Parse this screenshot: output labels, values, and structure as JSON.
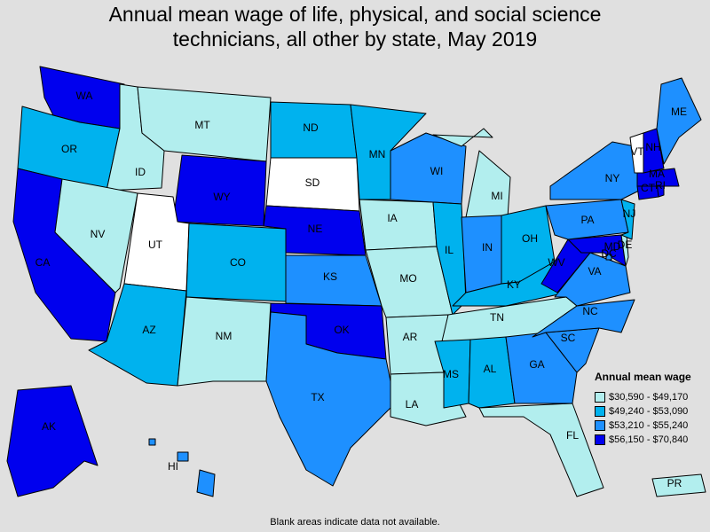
{
  "title_line1": "Annual mean wage of life, physical, and social science",
  "title_line2": "technicians, all other by state, May 2019",
  "legend": {
    "title": "Annual mean wage",
    "bins": [
      {
        "label": "$30,590 - $49,170",
        "color": "#b2eeee"
      },
      {
        "label": "$49,240 - $53,090",
        "color": "#00b2ee"
      },
      {
        "label": "$53,210 - $55,240",
        "color": "#1e90ff"
      },
      {
        "label": "$56,150 - $70,840",
        "color": "#0000ee"
      }
    ]
  },
  "no_data_color": "#ffffff",
  "note": "Blank areas indicate data not available.",
  "states": [
    {
      "abbr": "WA",
      "bin": 3
    },
    {
      "abbr": "OR",
      "bin": 1
    },
    {
      "abbr": "CA",
      "bin": 3
    },
    {
      "abbr": "ID",
      "bin": 0
    },
    {
      "abbr": "NV",
      "bin": 0
    },
    {
      "abbr": "MT",
      "bin": 0
    },
    {
      "abbr": "WY",
      "bin": 3
    },
    {
      "abbr": "UT",
      "bin": null
    },
    {
      "abbr": "AZ",
      "bin": 1
    },
    {
      "abbr": "CO",
      "bin": 1
    },
    {
      "abbr": "NM",
      "bin": 0
    },
    {
      "abbr": "ND",
      "bin": 1
    },
    {
      "abbr": "SD",
      "bin": null
    },
    {
      "abbr": "NE",
      "bin": 3
    },
    {
      "abbr": "KS",
      "bin": 2
    },
    {
      "abbr": "OK",
      "bin": 3
    },
    {
      "abbr": "TX",
      "bin": 2
    },
    {
      "abbr": "MN",
      "bin": 1
    },
    {
      "abbr": "IA",
      "bin": 0
    },
    {
      "abbr": "MO",
      "bin": 0
    },
    {
      "abbr": "AR",
      "bin": 0
    },
    {
      "abbr": "LA",
      "bin": 0
    },
    {
      "abbr": "WI",
      "bin": 2
    },
    {
      "abbr": "IL",
      "bin": 1
    },
    {
      "abbr": "MI",
      "bin": 0
    },
    {
      "abbr": "IN",
      "bin": 2
    },
    {
      "abbr": "OH",
      "bin": 1
    },
    {
      "abbr": "KY",
      "bin": 1
    },
    {
      "abbr": "TN",
      "bin": 0
    },
    {
      "abbr": "MS",
      "bin": 1
    },
    {
      "abbr": "AL",
      "bin": 1
    },
    {
      "abbr": "GA",
      "bin": 2
    },
    {
      "abbr": "FL",
      "bin": 0
    },
    {
      "abbr": "SC",
      "bin": 2
    },
    {
      "abbr": "NC",
      "bin": 2
    },
    {
      "abbr": "VA",
      "bin": 2
    },
    {
      "abbr": "WV",
      "bin": 3
    },
    {
      "abbr": "MD",
      "bin": 3
    },
    {
      "abbr": "DE",
      "bin": 0
    },
    {
      "abbr": "DC",
      "bin": 2
    },
    {
      "abbr": "PA",
      "bin": 2
    },
    {
      "abbr": "NJ",
      "bin": 1
    },
    {
      "abbr": "NY",
      "bin": 2
    },
    {
      "abbr": "CT",
      "bin": 3
    },
    {
      "abbr": "RI",
      "bin": 3
    },
    {
      "abbr": "MA",
      "bin": 3
    },
    {
      "abbr": "VT",
      "bin": null
    },
    {
      "abbr": "NH",
      "bin": 3
    },
    {
      "abbr": "ME",
      "bin": 2
    },
    {
      "abbr": "AK",
      "bin": 3
    },
    {
      "abbr": "HI",
      "bin": 2
    },
    {
      "abbr": "PR",
      "bin": 0
    }
  ]
}
